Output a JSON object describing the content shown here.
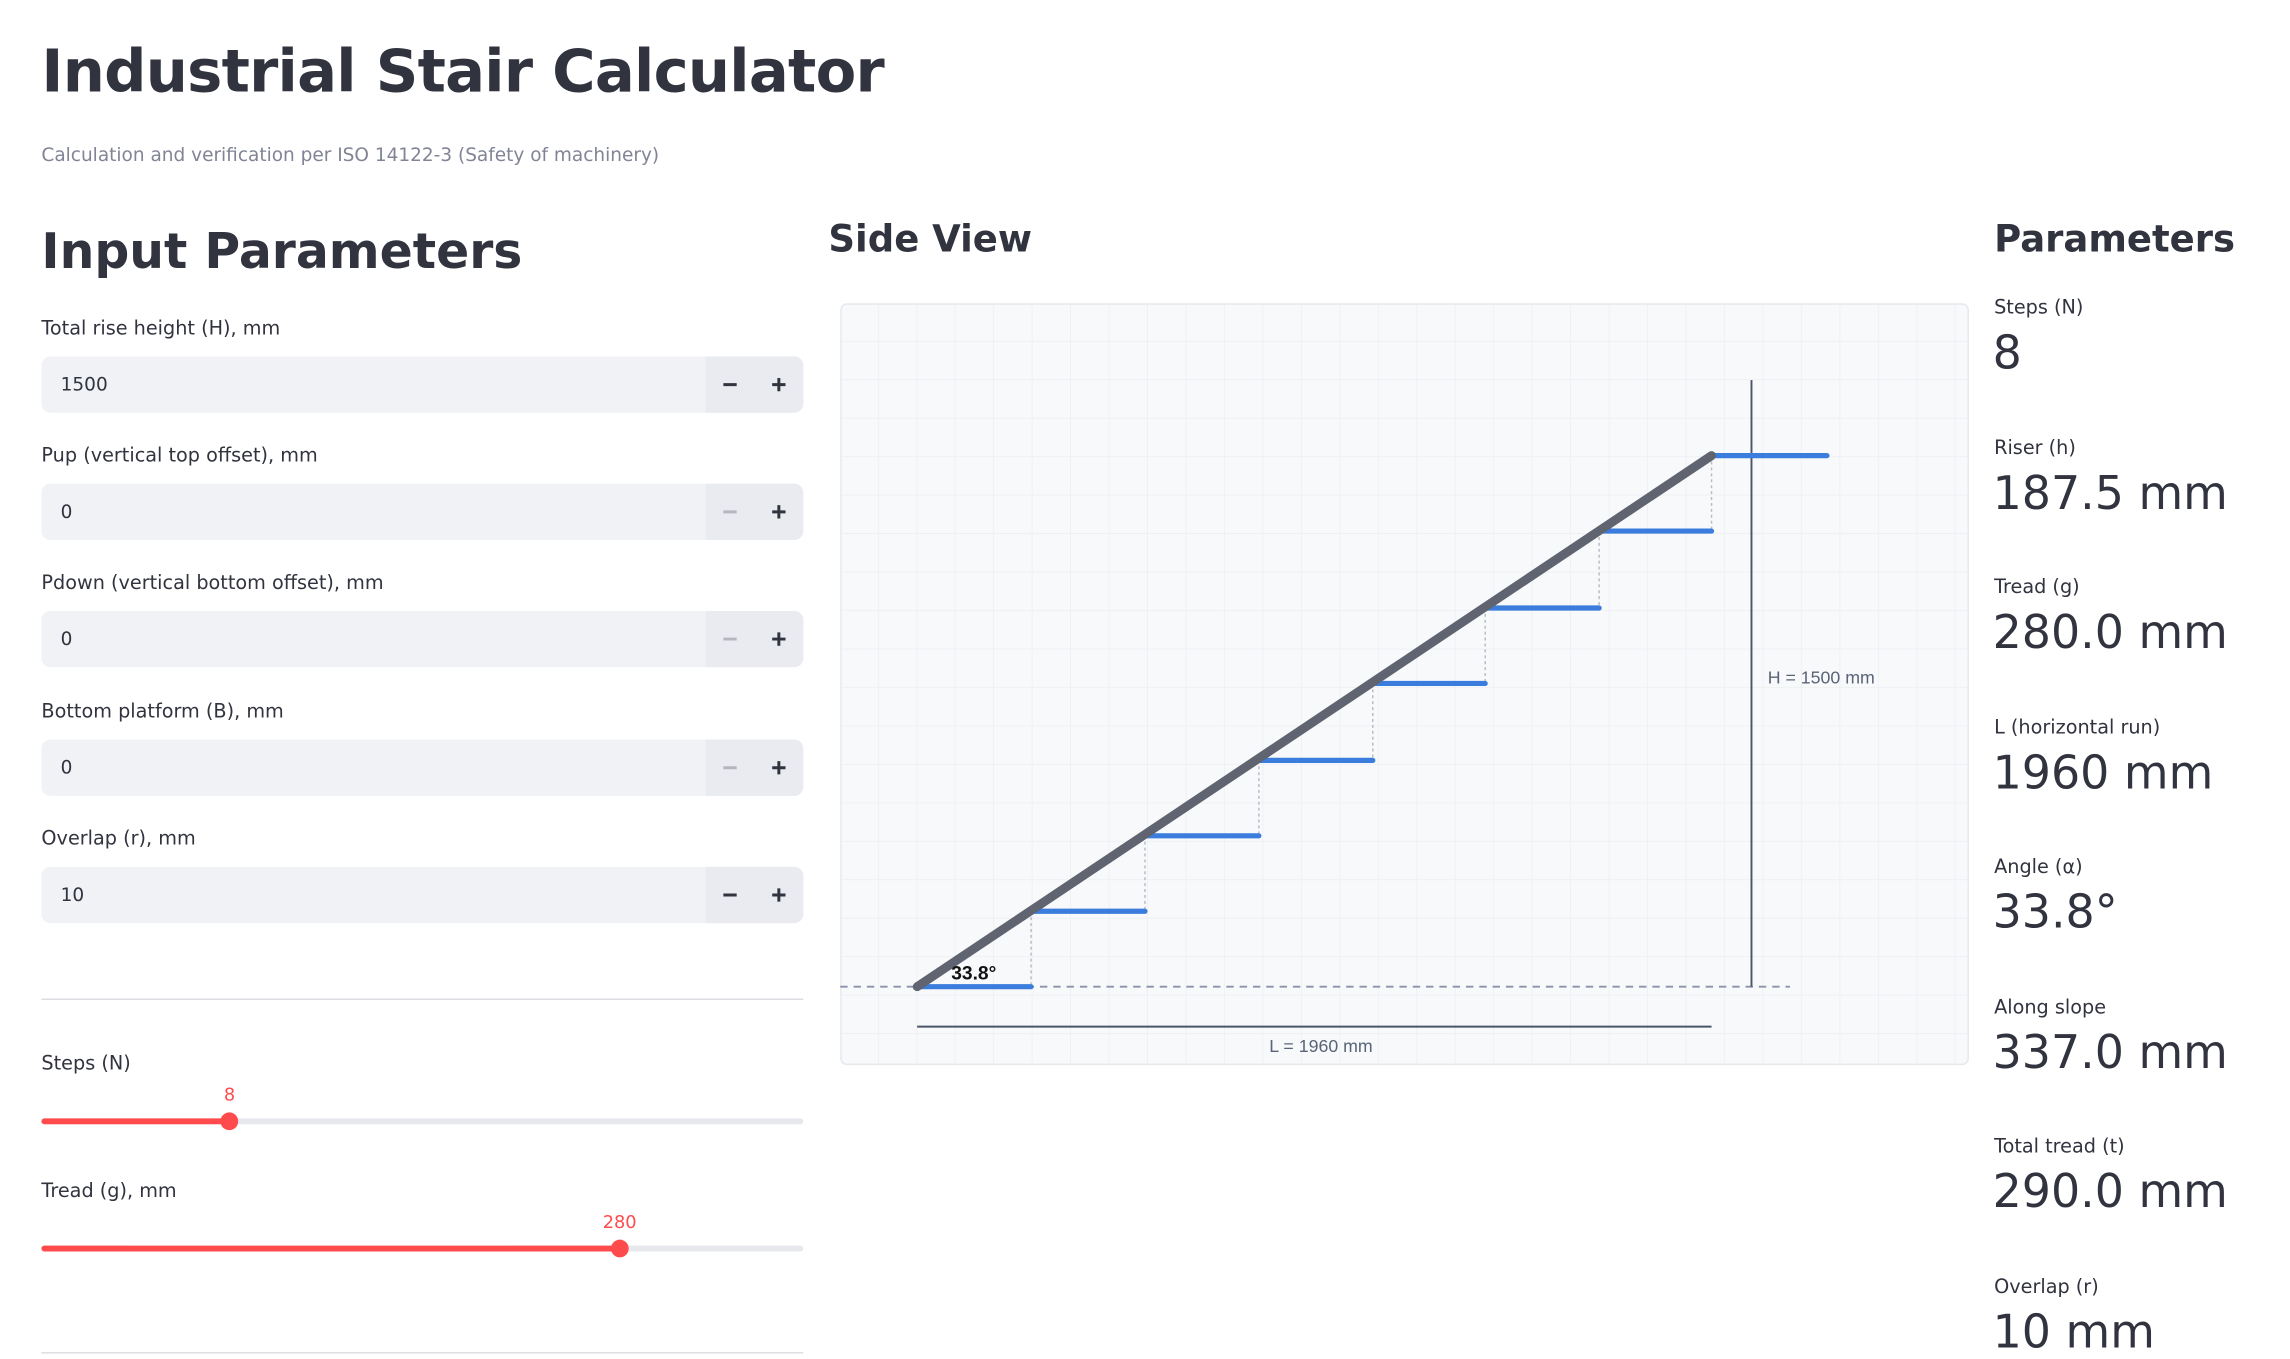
{
  "header": {
    "title": "Industrial Stair Calculator",
    "subtitle": "Calculation and verification per ISO 14122-3 (Safety of machinery)"
  },
  "inputs": {
    "title": "Input Parameters",
    "fields": [
      {
        "label": "Total rise height (H), mm",
        "value": 1500
      },
      {
        "label": "Pup (vertical top offset), mm",
        "value": 0
      },
      {
        "label": "Pdown (vertical bottom offset), mm",
        "value": 0
      },
      {
        "label": "Bottom platform (B), mm",
        "value": 0
      },
      {
        "label": "Overlap (r), mm",
        "value": 10
      }
    ]
  },
  "sliders": [
    {
      "label": "Steps (N)",
      "value": 8
    },
    {
      "label": "Tread (g), mm",
      "value": 280
    }
  ],
  "side_view": {
    "title": "Side View",
    "angle_label": "33.8°",
    "height_label": "H = 1500 mm",
    "length_label": "L = 1960 mm"
  },
  "parameters": {
    "title": "Parameters",
    "items": [
      {
        "label": "Steps (N)",
        "value": 8
      },
      {
        "label": "Riser (h)",
        "value": "187.5 mm"
      },
      {
        "label": "Tread (g)",
        "value": "280.0 mm"
      },
      {
        "label": "L (horizontal run)",
        "value": "1960 mm"
      },
      {
        "label": "Angle (α)",
        "value": "33.8°"
      },
      {
        "label": "Along slope",
        "value": "337.0 mm"
      },
      {
        "label": "Total tread (t)",
        "value": "290.0 mm"
      },
      {
        "label": "Overlap (r)",
        "value": "10 mm"
      }
    ]
  }
}
